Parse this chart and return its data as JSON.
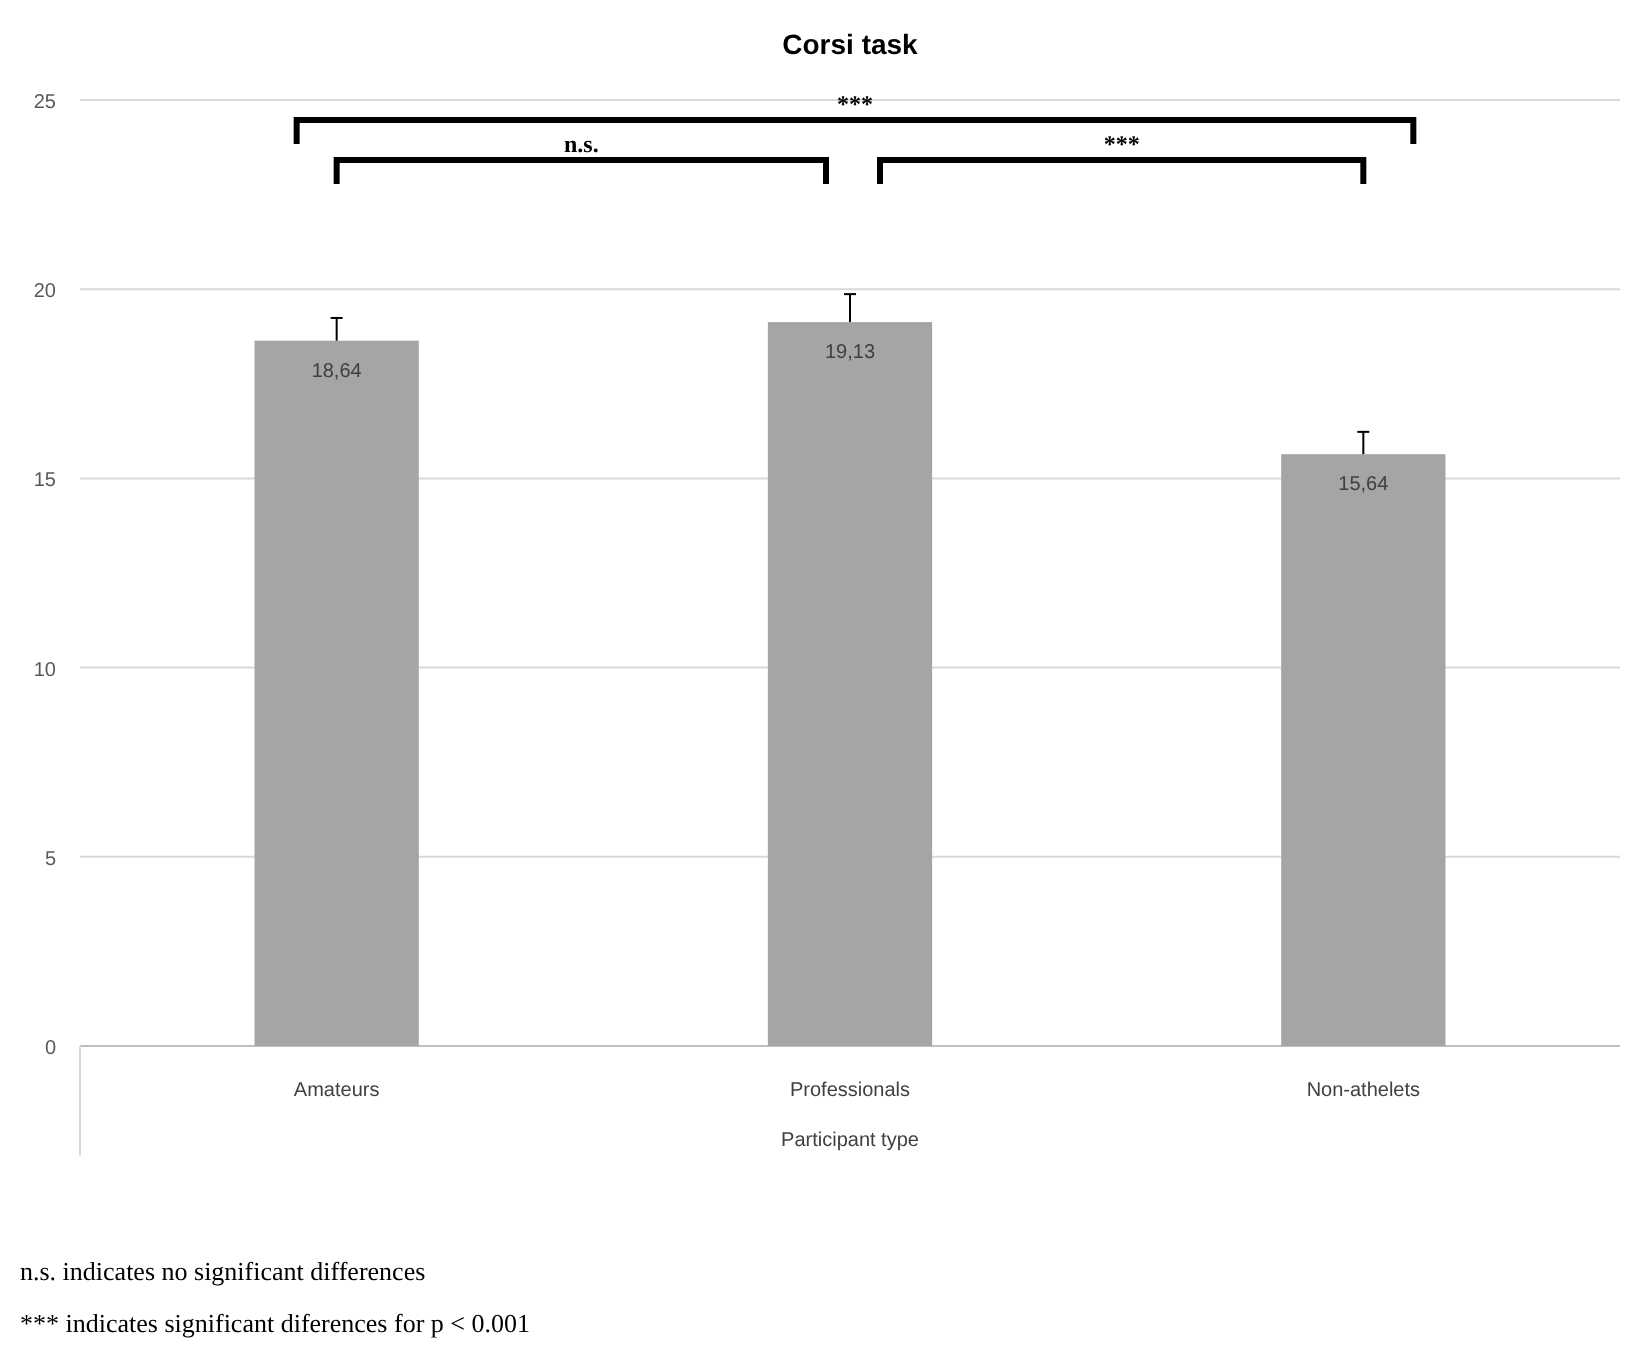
{
  "chart_data": {
    "type": "bar",
    "title": "Corsi task",
    "xlabel": "Participant type",
    "categories": [
      "Amateurs",
      "Professionals",
      "Non-athelets"
    ],
    "values": [
      18.64,
      19.13,
      15.64
    ],
    "value_labels": [
      "18,64",
      "19,13",
      "15,64"
    ],
    "errors": [
      [
        18.64,
        19.24
      ],
      [
        19.13,
        19.87
      ],
      [
        15.64,
        16.23
      ]
    ],
    "color": "#a5a5a5",
    "ylim": [
      0,
      25
    ],
    "yticks": [
      0,
      5,
      10,
      15,
      20,
      25
    ],
    "grid": "y",
    "annotations": [
      "***",
      "n.s.",
      "***",
      "n.s. indicates no significant differences",
      "*** indicates significant diferences for p < 0.001"
    ]
  }
}
